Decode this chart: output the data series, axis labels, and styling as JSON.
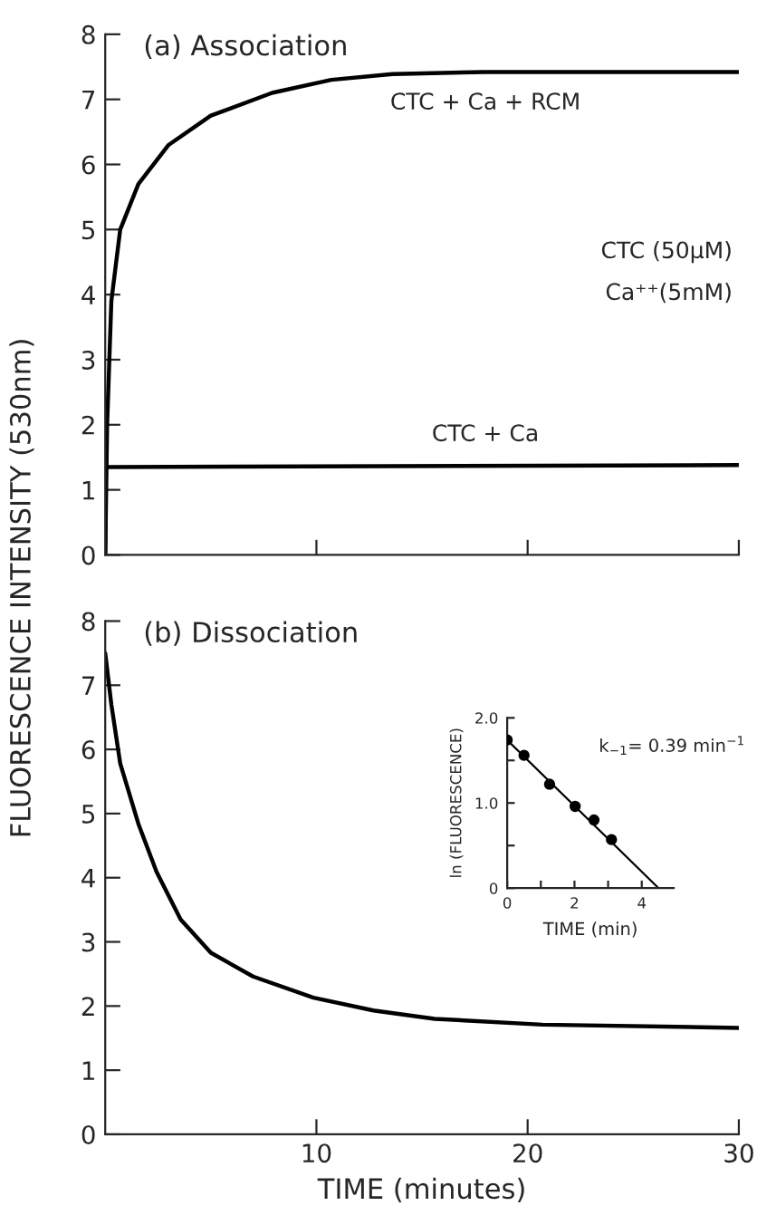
{
  "chart_data": [
    {
      "type": "line",
      "title": "(a) Association",
      "ylabel": "FLUORESCENCE INTENSITY (530nm)",
      "xlim": [
        0,
        30
      ],
      "xticks": [
        10,
        20,
        30
      ],
      "ylim": [
        0,
        8
      ],
      "yticks": [
        0,
        1,
        2,
        3,
        4,
        5,
        6,
        7,
        8
      ],
      "tick_labels": "y",
      "annotations": [
        "CTC (50μM)",
        "Ca⁺⁺(5mM)"
      ],
      "series": [
        {
          "name": "CTC + Ca + RCM",
          "color": "#000000",
          "x": [
            0,
            0.09,
            0.29,
            0.71,
            1.57,
            3.0,
            5.0,
            7.9,
            10.7,
            13.6,
            17.9,
            30
          ],
          "values": [
            0,
            2.0,
            3.9,
            5.0,
            5.7,
            6.3,
            6.75,
            7.1,
            7.3,
            7.39,
            7.42,
            7.42
          ]
        },
        {
          "name": "CTC + Ca",
          "color": "#000000",
          "x": [
            0,
            0.03,
            30
          ],
          "values": [
            0,
            1.35,
            1.38
          ]
        }
      ]
    },
    {
      "type": "line",
      "title": "(b) Dissociation",
      "xlabel": "TIME (minutes)",
      "xlim": [
        0,
        30
      ],
      "xticks": [
        10,
        20,
        30
      ],
      "ylim": [
        0,
        8
      ],
      "yticks": [
        0,
        1,
        2,
        3,
        4,
        5,
        6,
        7,
        8
      ],
      "series": [
        {
          "color": "#000000",
          "x": [
            0,
            0.29,
            0.71,
            1.57,
            2.43,
            3.57,
            5,
            7,
            9.86,
            12.7,
            15.6,
            20.7,
            30
          ],
          "values": [
            7.5,
            6.7,
            5.78,
            4.84,
            4.09,
            3.35,
            2.83,
            2.46,
            2.13,
            1.93,
            1.8,
            1.71,
            1.66
          ]
        }
      ]
    },
    {
      "type": "scatter",
      "xlabel": "TIME (min)",
      "ylabel": "ln (FLUORESCENCE)",
      "xlim": [
        0,
        4.95
      ],
      "xticks": [
        0,
        {
          "value": 1,
          "label": null
        },
        2,
        {
          "value": 3,
          "label": null
        },
        4
      ],
      "ylim": [
        0,
        2.0
      ],
      "yticks": [
        {
          "value": 0,
          "label": "0"
        },
        {
          "value": 0.5,
          "label": null
        },
        {
          "value": 1.0,
          "label": "1.0"
        },
        {
          "value": 1.5,
          "label": null
        },
        {
          "value": 2.0,
          "label": "2.0"
        }
      ],
      "marker": "circle",
      "annotations": [
        "k$_{−1}$= 0.39 min$^{−1}$"
      ],
      "series": [
        {
          "color": "#000000",
          "x": [
            0,
            0.5,
            1.26,
            2.02,
            2.58,
            3.1
          ],
          "values": [
            1.74,
            1.56,
            1.22,
            0.96,
            0.8,
            0.57
          ]
        },
        {
          "type": "line",
          "marker": "none",
          "color": "#000000",
          "x": [
            0,
            4.5
          ],
          "values": [
            1.74,
            0
          ]
        }
      ]
    }
  ]
}
